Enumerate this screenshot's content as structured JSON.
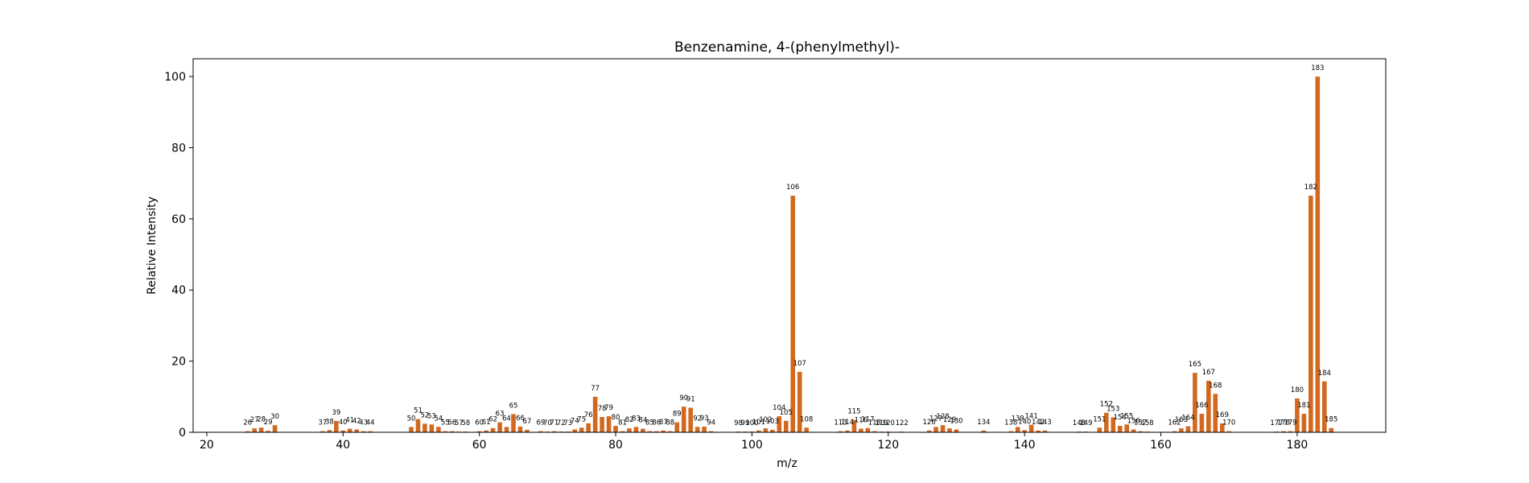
{
  "chart_data": {
    "type": "bar",
    "title": "Benzenamine, 4-(phenylmethyl)-",
    "xlabel": "m/z",
    "ylabel": "Relative Intensity",
    "xlim": [
      18,
      193
    ],
    "ylim": [
      0,
      105
    ],
    "xticks": [
      20,
      40,
      60,
      80,
      100,
      120,
      140,
      160,
      180
    ],
    "yticks": [
      0,
      20,
      40,
      60,
      80,
      100
    ],
    "grid": false,
    "bar_color": "#d2691e",
    "x": [
      26,
      27,
      28,
      29,
      30,
      37,
      38,
      39,
      40,
      41,
      42,
      43,
      44,
      50,
      51,
      52,
      53,
      54,
      55,
      56,
      57,
      58,
      60,
      61,
      62,
      63,
      64,
      65,
      66,
      67,
      69,
      70,
      71,
      72,
      73,
      74,
      75,
      76,
      77,
      78,
      79,
      80,
      81,
      82,
      83,
      84,
      85,
      86,
      87,
      88,
      89,
      90,
      91,
      92,
      93,
      94,
      98,
      99,
      100,
      101,
      102,
      103,
      104,
      105,
      106,
      107,
      108,
      113,
      114,
      115,
      116,
      117,
      118,
      119,
      120,
      122,
      126,
      127,
      128,
      129,
      130,
      134,
      138,
      139,
      140,
      141,
      142,
      143,
      148,
      149,
      151,
      152,
      153,
      154,
      155,
      156,
      157,
      158,
      162,
      163,
      164,
      165,
      166,
      167,
      168,
      169,
      170,
      177,
      178,
      179,
      180,
      181,
      182,
      183,
      184,
      185
    ],
    "y": [
      0.3,
      1.1,
      1.3,
      0.4,
      2.0,
      0.3,
      0.6,
      3.2,
      0.5,
      1.0,
      0.8,
      0.3,
      0.3,
      1.5,
      3.7,
      2.4,
      2.2,
      1.5,
      0.3,
      0.3,
      0.2,
      0.2,
      0.3,
      0.5,
      1.2,
      2.8,
      1.5,
      5.1,
      1.6,
      0.7,
      0.3,
      0.2,
      0.3,
      0.2,
      0.2,
      0.8,
      1.3,
      2.5,
      10.0,
      4.3,
      4.5,
      1.8,
      0.3,
      1.1,
      1.5,
      1.0,
      0.3,
      0.3,
      0.5,
      0.3,
      2.8,
      7.2,
      6.9,
      1.5,
      1.6,
      0.3,
      0.2,
      0.2,
      0.2,
      0.5,
      1.1,
      0.7,
      4.5,
      3.2,
      66.5,
      17.0,
      1.3,
      0.3,
      0.5,
      3.5,
      1.0,
      1.2,
      0.3,
      0.2,
      0.2,
      0.2,
      0.5,
      1.5,
      2.0,
      1.1,
      0.8,
      0.5,
      0.3,
      1.5,
      0.6,
      2.1,
      0.5,
      0.5,
      0.2,
      0.2,
      1.3,
      5.5,
      4.2,
      1.8,
      2.2,
      0.8,
      0.3,
      0.2,
      0.3,
      1.1,
      1.7,
      16.7,
      5.2,
      14.5,
      10.8,
      2.5,
      0.3,
      0.2,
      0.3,
      0.3,
      9.5,
      5.2,
      66.5,
      100.0,
      14.3,
      1.2
    ],
    "labels": [
      "26",
      "27",
      "28",
      "29",
      "30",
      "37",
      "38",
      "39",
      "40",
      "41",
      "42",
      "43",
      "44",
      "50",
      "51",
      "52",
      "53",
      "54",
      "55",
      "56",
      "57",
      "58",
      "60",
      "61",
      "62",
      "63",
      "64",
      "65",
      "66",
      "67",
      "69",
      "70",
      "71",
      "72",
      "73",
      "74",
      "75",
      "76",
      "77",
      "78",
      "79",
      "80",
      "81",
      "82",
      "83",
      "84",
      "85",
      "86",
      "87",
      "88",
      "89",
      "90",
      "91",
      "92",
      "93",
      "94",
      "98",
      "99",
      "100",
      "101",
      "102",
      "103",
      "104",
      "105",
      "106",
      "107",
      "108",
      "113",
      "114",
      "115",
      "116",
      "117",
      "118",
      "119",
      "120",
      "122",
      "126",
      "127",
      "128",
      "129",
      "130",
      "134",
      "138",
      "139",
      "140",
      "141",
      "142",
      "143",
      "148",
      "149",
      "151",
      "152",
      "153",
      "154",
      "155",
      "156",
      "157",
      "158",
      "162",
      "163",
      "164",
      "165",
      "166",
      "167",
      "168",
      "169",
      "170",
      "177",
      "178",
      "179",
      "180",
      "181",
      "182",
      "183",
      "184",
      "185"
    ]
  }
}
